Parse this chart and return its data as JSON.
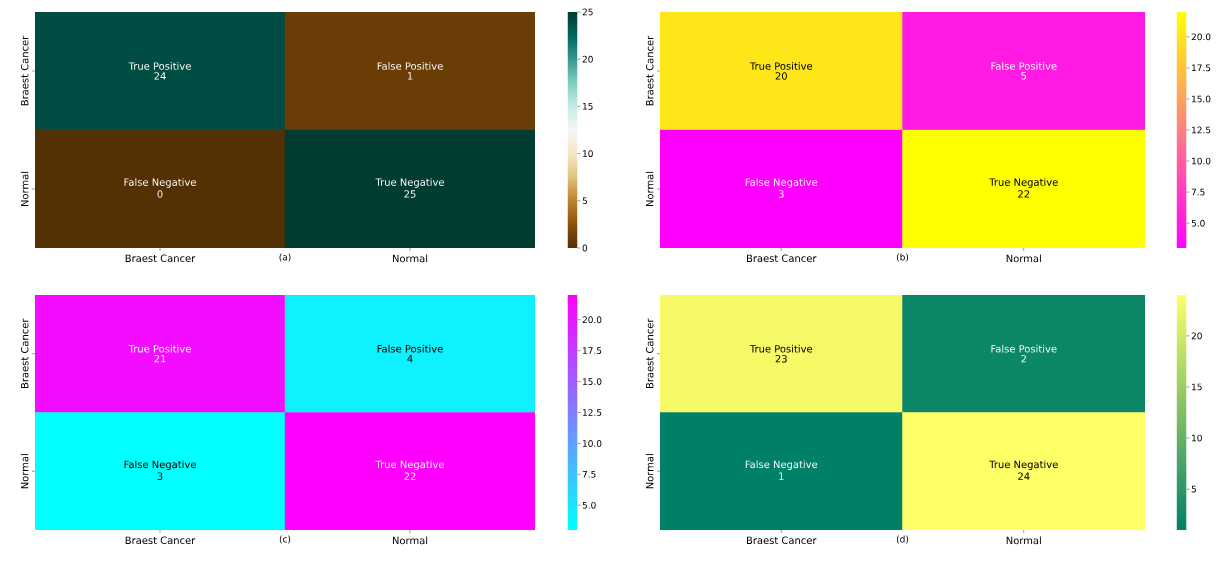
{
  "chart_data": [
    {
      "type": "heatmap",
      "categories": [
        "Braest Cancer",
        "Normal"
      ],
      "y_categories": [
        "Braest Cancer",
        "Normal"
      ],
      "cells": [
        [
          24,
          1
        ],
        [
          0,
          25
        ]
      ],
      "colors": [
        "#543005",
        "#8c510a",
        "#bf812d",
        "#dfc27d",
        "#f6e8c3",
        "#f5f5f5",
        "#c7eae5",
        "#80cdc1",
        "#35978f",
        "#01665e",
        "#003c30"
      ],
      "clim": [
        0,
        25
      ],
      "cticks": [
        0,
        5,
        10,
        15,
        20,
        25
      ],
      "data_labels": true,
      "annotations": [
        "True Positive",
        "False Positive",
        "False Negative",
        "True Negative",
        "(a)"
      ]
    },
    {
      "type": "heatmap",
      "categories": [
        "Braest Cancer",
        "Normal"
      ],
      "y_categories": [
        "Braest Cancer",
        "Normal"
      ],
      "cells": [
        [
          20,
          5
        ],
        [
          3,
          22
        ]
      ],
      "colors": [
        "#ff00ff",
        "#ffff00"
      ],
      "clim": [
        3,
        22
      ],
      "cticks": [
        {
          "value": 5,
          "label": "5.0"
        },
        {
          "value": 7.5,
          "label": "7.5"
        },
        {
          "value": 10,
          "label": "10.0"
        },
        {
          "value": 12.5,
          "label": "12.5"
        },
        {
          "value": 15,
          "label": "15.0"
        },
        {
          "value": 17.5,
          "label": "17.5"
        },
        {
          "value": 20,
          "label": "20.0"
        }
      ],
      "data_labels": true,
      "annotations": [
        "True Positive",
        "False Positive",
        "False Negative",
        "True Negative",
        "(b)"
      ]
    },
    {
      "type": "heatmap",
      "categories": [
        "Braest Cancer",
        "Normal"
      ],
      "y_categories": [
        "Braest Cancer",
        "Normal"
      ],
      "cells": [
        [
          21,
          4
        ],
        [
          3,
          22
        ]
      ],
      "colors": [
        "#00ffff",
        "#ff00ff"
      ],
      "clim": [
        3,
        22
      ],
      "cticks": [
        {
          "value": 5,
          "label": "5.0"
        },
        {
          "value": 7.5,
          "label": "7.5"
        },
        {
          "value": 10,
          "label": "10.0"
        },
        {
          "value": 12.5,
          "label": "12.5"
        },
        {
          "value": 15,
          "label": "15.0"
        },
        {
          "value": 17.5,
          "label": "17.5"
        },
        {
          "value": 20,
          "label": "20.0"
        }
      ],
      "data_labels": true,
      "annotations": [
        "True Positive",
        "False Positive",
        "False Negative",
        "True Negative",
        "(c)"
      ]
    },
    {
      "type": "heatmap",
      "categories": [
        "Braest Cancer",
        "Normal"
      ],
      "y_categories": [
        "Braest Cancer",
        "Normal"
      ],
      "cells": [
        [
          23,
          2
        ],
        [
          1,
          24
        ]
      ],
      "colors": [
        "#008066",
        "#ffff66"
      ],
      "clim": [
        1,
        24
      ],
      "cticks": [
        5,
        10,
        15,
        20
      ],
      "data_labels": true,
      "annotations": [
        "True Positive",
        "False Positive",
        "False Negative",
        "True Negative",
        "(d)"
      ]
    }
  ]
}
